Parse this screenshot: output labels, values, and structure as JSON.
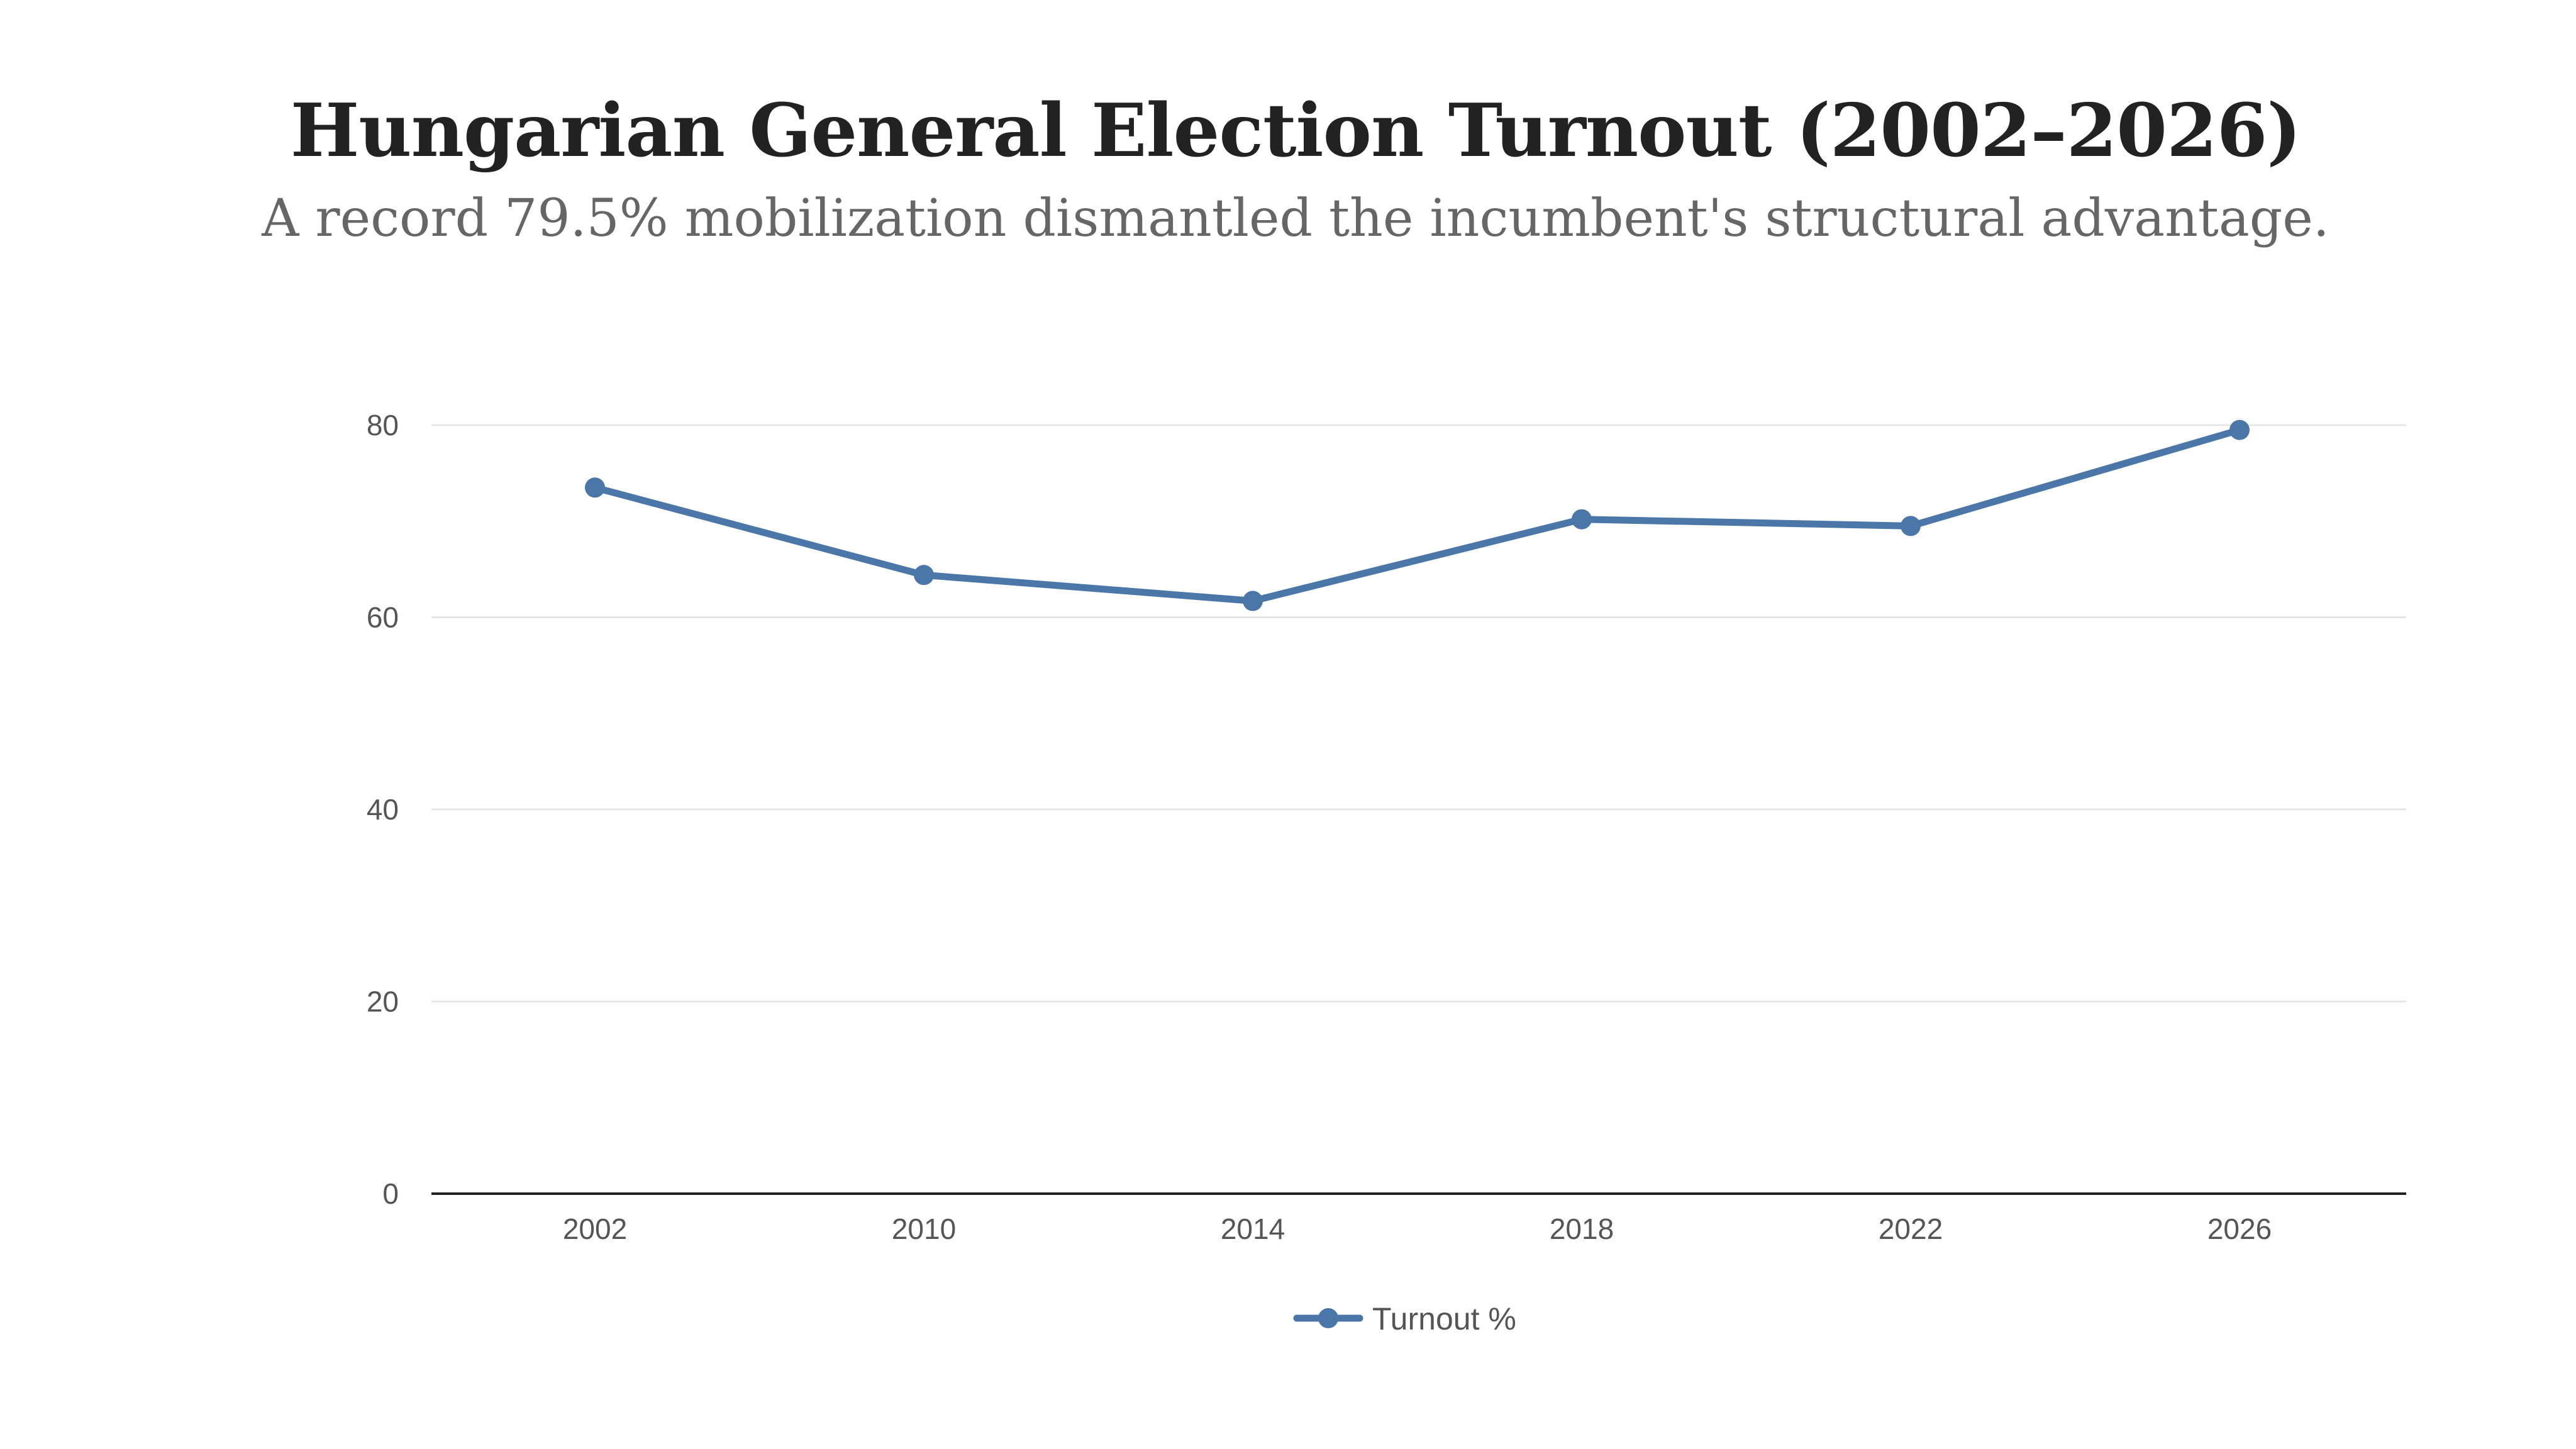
{
  "chart_data": {
    "type": "line",
    "title": "Hungarian General Election Turnout (2002–2026)",
    "subtitle": "A record 79.5% mobilization dismantled the incumbent's structural advantage.",
    "categories": [
      "2002",
      "2010",
      "2014",
      "2018",
      "2022",
      "2026"
    ],
    "series": [
      {
        "name": "Turnout %",
        "values": [
          73.5,
          64.4,
          61.7,
          70.2,
          69.5,
          79.5
        ],
        "color": "#4a76a8"
      }
    ],
    "yticks": [
      0,
      20,
      40,
      60,
      80
    ],
    "ylim": [
      0,
      80
    ],
    "xlabel": "",
    "ylabel": "",
    "grid": true,
    "legend": "bottom-center"
  }
}
